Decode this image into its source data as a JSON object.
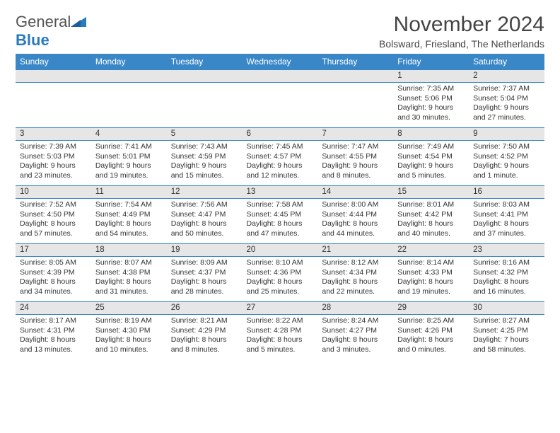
{
  "logo": {
    "text_a": "General",
    "text_b": "Blue"
  },
  "title": "November 2024",
  "location": "Bolsward, Friesland, The Netherlands",
  "colors": {
    "header_bg": "#3a87c8",
    "header_text": "#ffffff",
    "daynum_bg": "#e6e6e6",
    "row_border": "#3a87c8",
    "text": "#333333",
    "title_text": "#444444",
    "logo_blue": "#2a7abf",
    "logo_gray": "#555555"
  },
  "day_headers": [
    "Sunday",
    "Monday",
    "Tuesday",
    "Wednesday",
    "Thursday",
    "Friday",
    "Saturday"
  ],
  "weeks": [
    [
      {
        "num": "",
        "lines": [
          "",
          "",
          "",
          ""
        ]
      },
      {
        "num": "",
        "lines": [
          "",
          "",
          "",
          ""
        ]
      },
      {
        "num": "",
        "lines": [
          "",
          "",
          "",
          ""
        ]
      },
      {
        "num": "",
        "lines": [
          "",
          "",
          "",
          ""
        ]
      },
      {
        "num": "",
        "lines": [
          "",
          "",
          "",
          ""
        ]
      },
      {
        "num": "1",
        "lines": [
          "Sunrise: 7:35 AM",
          "Sunset: 5:06 PM",
          "Daylight: 9 hours",
          "and 30 minutes."
        ]
      },
      {
        "num": "2",
        "lines": [
          "Sunrise: 7:37 AM",
          "Sunset: 5:04 PM",
          "Daylight: 9 hours",
          "and 27 minutes."
        ]
      }
    ],
    [
      {
        "num": "3",
        "lines": [
          "Sunrise: 7:39 AM",
          "Sunset: 5:03 PM",
          "Daylight: 9 hours",
          "and 23 minutes."
        ]
      },
      {
        "num": "4",
        "lines": [
          "Sunrise: 7:41 AM",
          "Sunset: 5:01 PM",
          "Daylight: 9 hours",
          "and 19 minutes."
        ]
      },
      {
        "num": "5",
        "lines": [
          "Sunrise: 7:43 AM",
          "Sunset: 4:59 PM",
          "Daylight: 9 hours",
          "and 15 minutes."
        ]
      },
      {
        "num": "6",
        "lines": [
          "Sunrise: 7:45 AM",
          "Sunset: 4:57 PM",
          "Daylight: 9 hours",
          "and 12 minutes."
        ]
      },
      {
        "num": "7",
        "lines": [
          "Sunrise: 7:47 AM",
          "Sunset: 4:55 PM",
          "Daylight: 9 hours",
          "and 8 minutes."
        ]
      },
      {
        "num": "8",
        "lines": [
          "Sunrise: 7:49 AM",
          "Sunset: 4:54 PM",
          "Daylight: 9 hours",
          "and 5 minutes."
        ]
      },
      {
        "num": "9",
        "lines": [
          "Sunrise: 7:50 AM",
          "Sunset: 4:52 PM",
          "Daylight: 9 hours",
          "and 1 minute."
        ]
      }
    ],
    [
      {
        "num": "10",
        "lines": [
          "Sunrise: 7:52 AM",
          "Sunset: 4:50 PM",
          "Daylight: 8 hours",
          "and 57 minutes."
        ]
      },
      {
        "num": "11",
        "lines": [
          "Sunrise: 7:54 AM",
          "Sunset: 4:49 PM",
          "Daylight: 8 hours",
          "and 54 minutes."
        ]
      },
      {
        "num": "12",
        "lines": [
          "Sunrise: 7:56 AM",
          "Sunset: 4:47 PM",
          "Daylight: 8 hours",
          "and 50 minutes."
        ]
      },
      {
        "num": "13",
        "lines": [
          "Sunrise: 7:58 AM",
          "Sunset: 4:45 PM",
          "Daylight: 8 hours",
          "and 47 minutes."
        ]
      },
      {
        "num": "14",
        "lines": [
          "Sunrise: 8:00 AM",
          "Sunset: 4:44 PM",
          "Daylight: 8 hours",
          "and 44 minutes."
        ]
      },
      {
        "num": "15",
        "lines": [
          "Sunrise: 8:01 AM",
          "Sunset: 4:42 PM",
          "Daylight: 8 hours",
          "and 40 minutes."
        ]
      },
      {
        "num": "16",
        "lines": [
          "Sunrise: 8:03 AM",
          "Sunset: 4:41 PM",
          "Daylight: 8 hours",
          "and 37 minutes."
        ]
      }
    ],
    [
      {
        "num": "17",
        "lines": [
          "Sunrise: 8:05 AM",
          "Sunset: 4:39 PM",
          "Daylight: 8 hours",
          "and 34 minutes."
        ]
      },
      {
        "num": "18",
        "lines": [
          "Sunrise: 8:07 AM",
          "Sunset: 4:38 PM",
          "Daylight: 8 hours",
          "and 31 minutes."
        ]
      },
      {
        "num": "19",
        "lines": [
          "Sunrise: 8:09 AM",
          "Sunset: 4:37 PM",
          "Daylight: 8 hours",
          "and 28 minutes."
        ]
      },
      {
        "num": "20",
        "lines": [
          "Sunrise: 8:10 AM",
          "Sunset: 4:36 PM",
          "Daylight: 8 hours",
          "and 25 minutes."
        ]
      },
      {
        "num": "21",
        "lines": [
          "Sunrise: 8:12 AM",
          "Sunset: 4:34 PM",
          "Daylight: 8 hours",
          "and 22 minutes."
        ]
      },
      {
        "num": "22",
        "lines": [
          "Sunrise: 8:14 AM",
          "Sunset: 4:33 PM",
          "Daylight: 8 hours",
          "and 19 minutes."
        ]
      },
      {
        "num": "23",
        "lines": [
          "Sunrise: 8:16 AM",
          "Sunset: 4:32 PM",
          "Daylight: 8 hours",
          "and 16 minutes."
        ]
      }
    ],
    [
      {
        "num": "24",
        "lines": [
          "Sunrise: 8:17 AM",
          "Sunset: 4:31 PM",
          "Daylight: 8 hours",
          "and 13 minutes."
        ]
      },
      {
        "num": "25",
        "lines": [
          "Sunrise: 8:19 AM",
          "Sunset: 4:30 PM",
          "Daylight: 8 hours",
          "and 10 minutes."
        ]
      },
      {
        "num": "26",
        "lines": [
          "Sunrise: 8:21 AM",
          "Sunset: 4:29 PM",
          "Daylight: 8 hours",
          "and 8 minutes."
        ]
      },
      {
        "num": "27",
        "lines": [
          "Sunrise: 8:22 AM",
          "Sunset: 4:28 PM",
          "Daylight: 8 hours",
          "and 5 minutes."
        ]
      },
      {
        "num": "28",
        "lines": [
          "Sunrise: 8:24 AM",
          "Sunset: 4:27 PM",
          "Daylight: 8 hours",
          "and 3 minutes."
        ]
      },
      {
        "num": "29",
        "lines": [
          "Sunrise: 8:25 AM",
          "Sunset: 4:26 PM",
          "Daylight: 8 hours",
          "and 0 minutes."
        ]
      },
      {
        "num": "30",
        "lines": [
          "Sunrise: 8:27 AM",
          "Sunset: 4:25 PM",
          "Daylight: 7 hours",
          "and 58 minutes."
        ]
      }
    ]
  ]
}
